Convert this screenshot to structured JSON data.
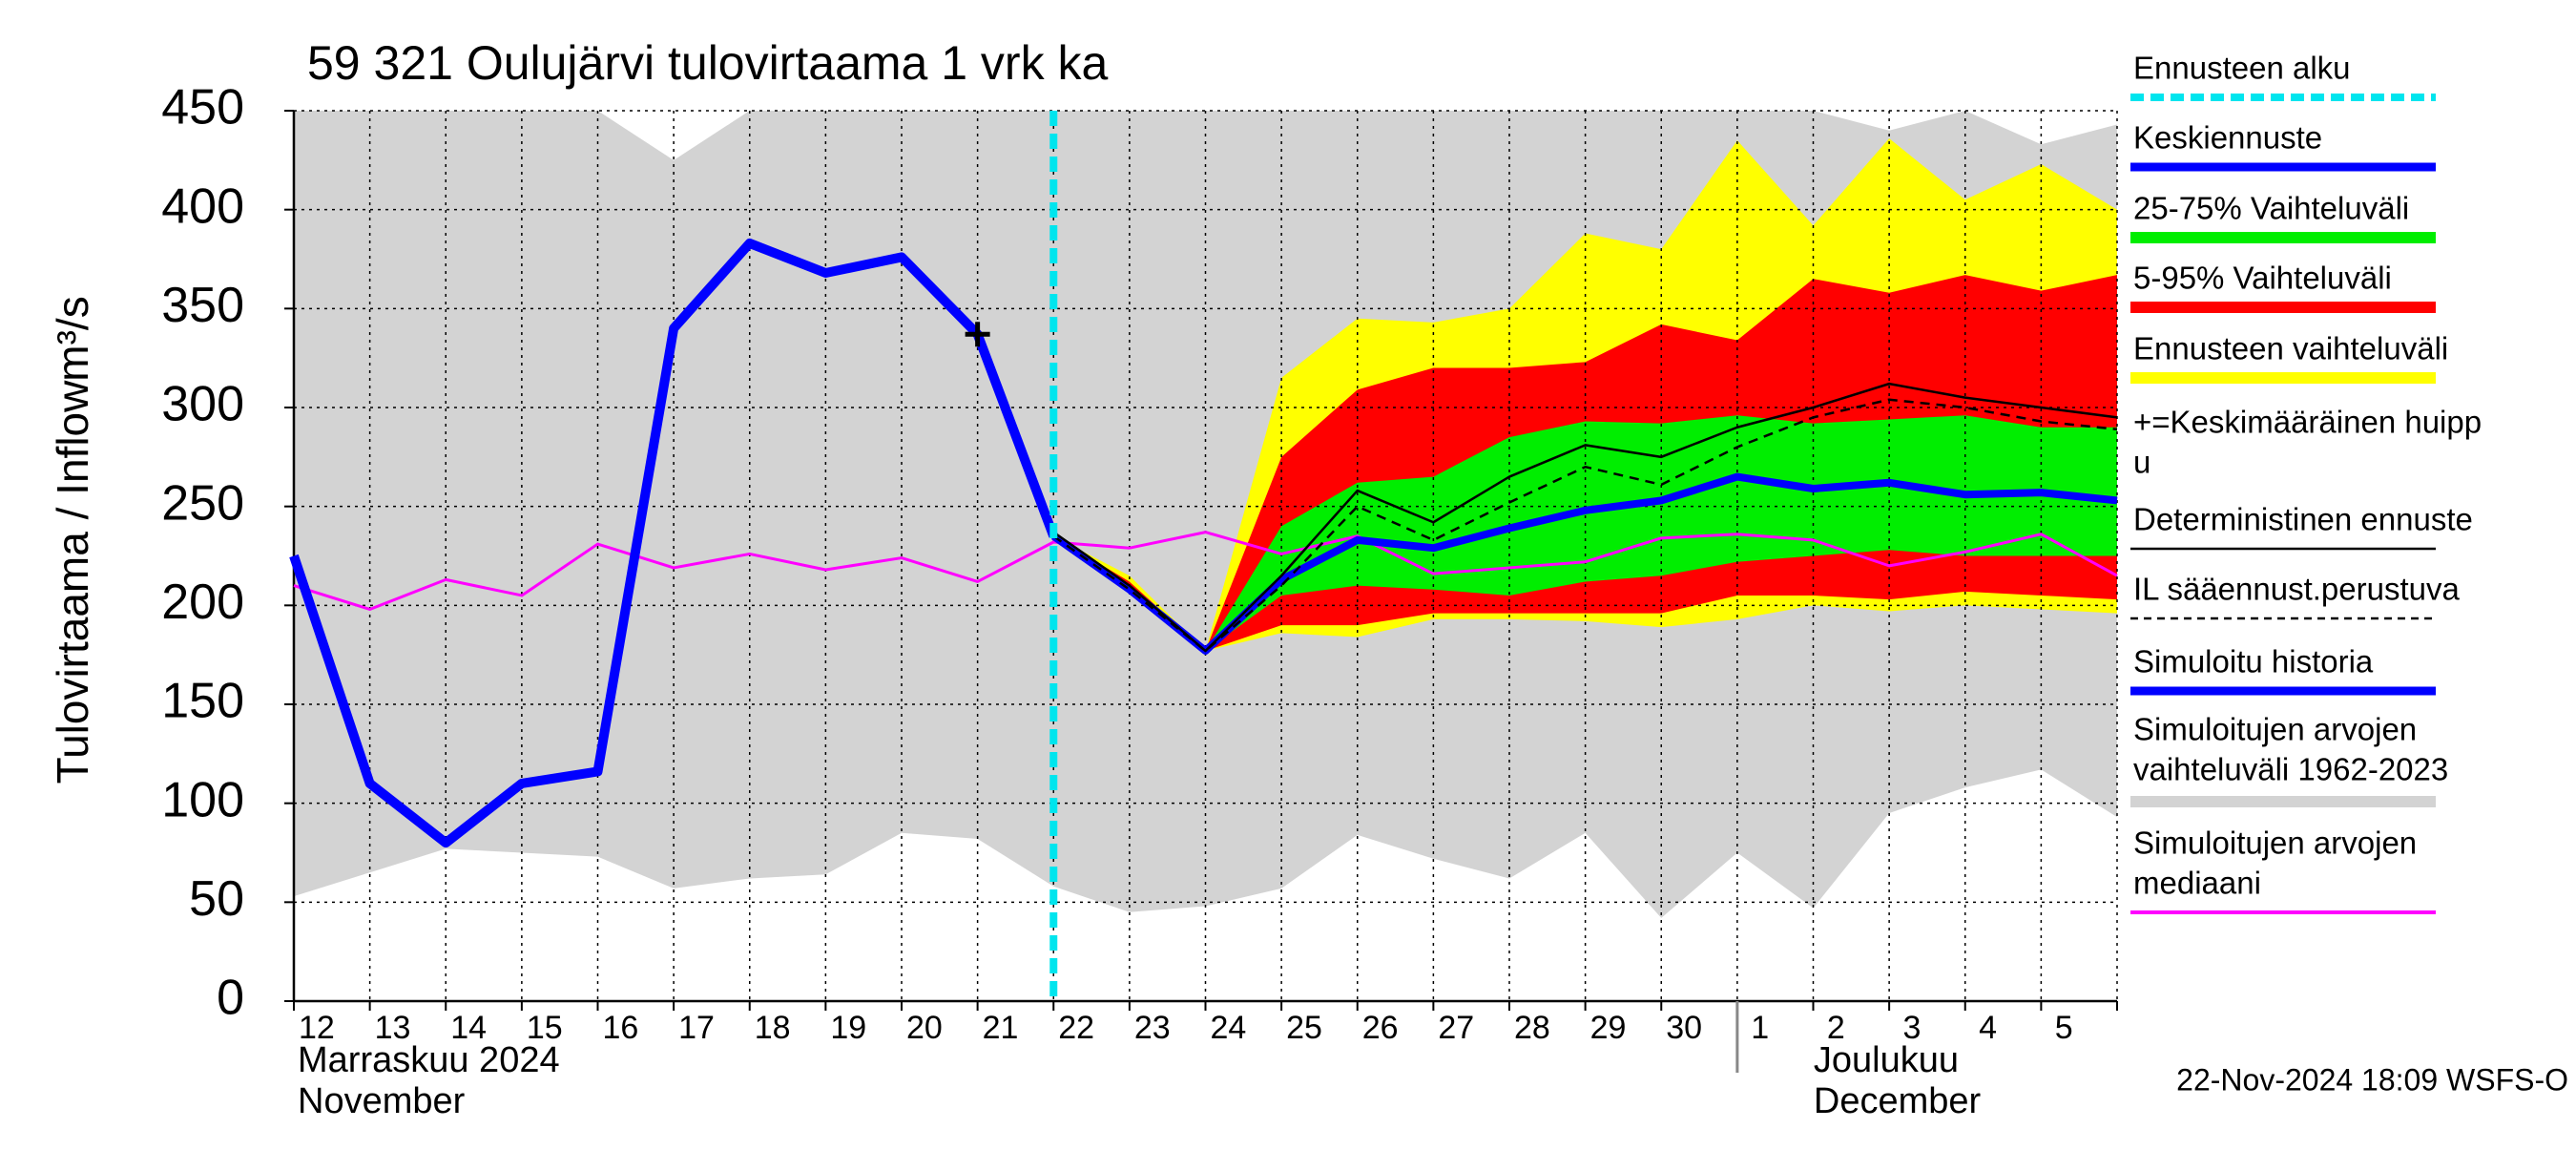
{
  "chart_data": {
    "type": "line",
    "title": "59 321 Oulujärvi tulovirtaama 1 vrk ka",
    "y_label": "Tulovirtaama / Inflow",
    "y_unit": "m³/s",
    "categories": [
      "12",
      "13",
      "14",
      "15",
      "16",
      "17",
      "18",
      "19",
      "20",
      "21",
      "22",
      "23",
      "24",
      "25",
      "26",
      "27",
      "28",
      "29",
      "30",
      "1",
      "2",
      "3",
      "4",
      "5",
      null
    ],
    "month_labels": [
      {
        "index": 0,
        "lines": [
          "Marraskuu 2024",
          "November"
        ]
      },
      {
        "index": 19,
        "lines": [
          "Joulukuu",
          "December"
        ]
      }
    ],
    "ylim": [
      0,
      450
    ],
    "yticks": [
      0,
      50,
      100,
      150,
      200,
      250,
      300,
      350,
      400,
      450
    ],
    "grid": true,
    "forecast_start": {
      "name": "Ennusteen alku",
      "index": 10,
      "color": "#00e5ee"
    },
    "mean_peak": {
      "name": [
        "+=Keskimääräinen huipp",
        "u"
      ],
      "index": 9,
      "value": 337,
      "color": "#000000"
    },
    "bands": [
      {
        "name": [
          "Simuloitujen arvojen",
          "vaihteluväli 1962-2023"
        ],
        "color": "#d3d3d3",
        "lower": [
          53,
          65,
          77,
          75,
          73,
          57,
          62,
          64,
          85,
          82,
          58,
          45,
          48,
          57,
          84,
          72,
          62,
          85,
          42,
          75,
          47,
          95,
          108,
          117,
          93
        ],
        "upper": [
          450,
          450,
          450,
          450,
          450,
          425,
          450,
          450,
          450,
          450,
          450,
          450,
          450,
          450,
          450,
          450,
          450,
          450,
          450,
          450,
          450,
          440,
          450,
          433,
          443
        ]
      },
      {
        "name": "Ennusteen vaihteluväli",
        "color": "#ffff00",
        "lower": [
          null,
          null,
          null,
          null,
          null,
          null,
          null,
          null,
          null,
          null,
          235,
          208,
          177,
          186,
          184,
          193,
          193,
          192,
          189,
          193,
          200,
          197,
          200,
          198,
          196
        ],
        "upper": [
          null,
          null,
          null,
          null,
          null,
          null,
          null,
          null,
          null,
          null,
          235,
          215,
          177,
          315,
          345,
          343,
          350,
          388,
          380,
          435,
          392,
          436,
          405,
          423,
          400
        ]
      },
      {
        "name": "5-95% Vaihteluväli",
        "color": "#ff0000",
        "lower": [
          null,
          null,
          null,
          null,
          null,
          null,
          null,
          null,
          null,
          null,
          235,
          208,
          177,
          190,
          190,
          196,
          196,
          196,
          196,
          205,
          205,
          203,
          207,
          205,
          203
        ],
        "upper": [
          null,
          null,
          null,
          null,
          null,
          null,
          null,
          null,
          null,
          null,
          235,
          212,
          177,
          275,
          309,
          320,
          320,
          323,
          342,
          334,
          365,
          358,
          367,
          359,
          367
        ]
      },
      {
        "name": "25-75% Vaihteluväli",
        "color": "#00ee00",
        "lower": [
          null,
          null,
          null,
          null,
          null,
          null,
          null,
          null,
          null,
          null,
          235,
          208,
          177,
          205,
          210,
          208,
          205,
          212,
          215,
          222,
          225,
          228,
          225,
          225,
          225
        ],
        "upper": [
          null,
          null,
          null,
          null,
          null,
          null,
          null,
          null,
          null,
          null,
          235,
          210,
          177,
          240,
          262,
          265,
          285,
          293,
          292,
          296,
          292,
          294,
          296,
          290,
          290
        ]
      }
    ],
    "series": [
      {
        "name": [
          "Simuloitujen arvojen",
          "mediaani"
        ],
        "color": "#ff00ff",
        "width": 3,
        "dashed": false,
        "values": [
          210,
          198,
          213,
          205,
          231,
          219,
          226,
          218,
          224,
          212,
          232,
          229,
          237,
          226,
          235,
          216,
          219,
          222,
          234,
          236,
          233,
          220,
          227,
          236,
          215
        ]
      },
      {
        "name": "Simuloitu historia",
        "color": "#0000ff",
        "width": 10,
        "dashed": false,
        "values": [
          225,
          110,
          80,
          110,
          116,
          340,
          383,
          368,
          376,
          337,
          235,
          null,
          null,
          null,
          null,
          null,
          null,
          null,
          null,
          null,
          null,
          null,
          null,
          null,
          null
        ]
      },
      {
        "name": "Keskiennuste",
        "color": "#0000ff",
        "width": 8,
        "dashed": false,
        "values": [
          null,
          null,
          null,
          null,
          null,
          null,
          null,
          null,
          null,
          null,
          235,
          208,
          177,
          213,
          233,
          229,
          239,
          248,
          253,
          265,
          259,
          262,
          256,
          257,
          253
        ]
      },
      {
        "name": "Deterministinen ennuste",
        "color": "#000000",
        "width": 2.5,
        "dashed": false,
        "values": [
          null,
          null,
          null,
          null,
          null,
          null,
          null,
          null,
          null,
          null,
          237,
          210,
          177,
          215,
          258,
          242,
          265,
          281,
          275,
          290,
          300,
          312,
          305,
          300,
          295
        ]
      },
      {
        "name": "IL sääennust.perustuva",
        "color": "#000000",
        "width": 2.5,
        "dashed": true,
        "values": [
          null,
          null,
          null,
          null,
          null,
          null,
          null,
          null,
          null,
          null,
          235,
          208,
          177,
          210,
          250,
          233,
          252,
          270,
          261,
          280,
          295,
          304,
          300,
          293,
          289
        ]
      }
    ],
    "footer": "22-Nov-2024 18:09 WSFS-O"
  }
}
